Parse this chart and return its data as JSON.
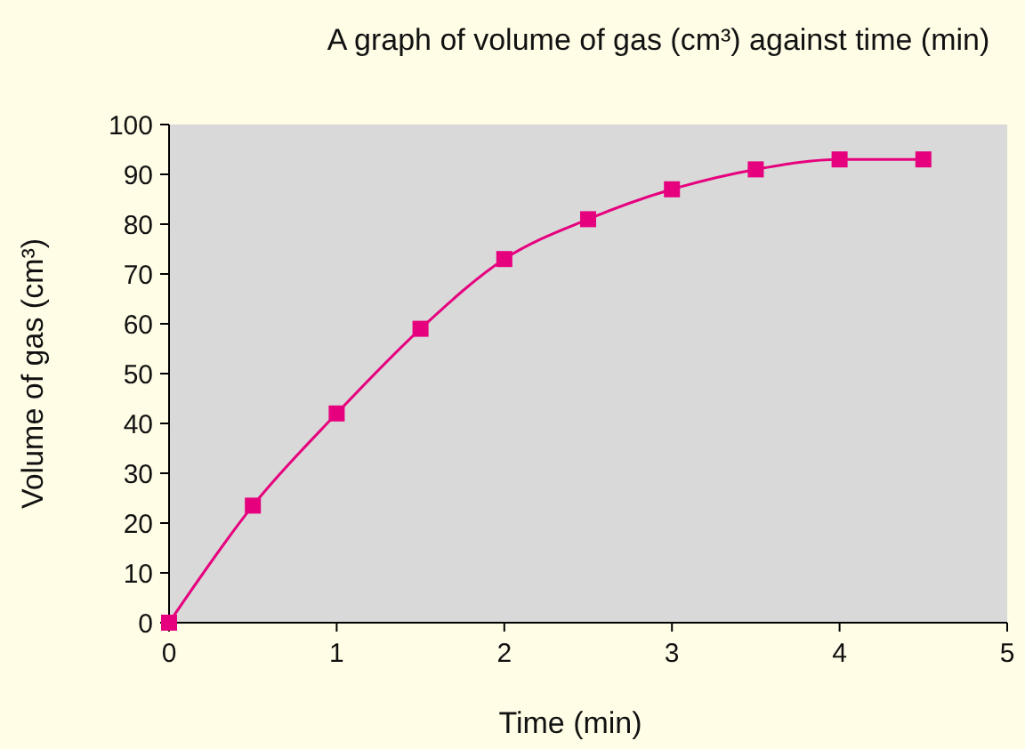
{
  "chart_data": {
    "type": "line",
    "title": "A graph of volume of gas (cm³) against time (min)",
    "xlabel": "Time (min)",
    "ylabel": "Volume of gas (cm³)",
    "x": [
      0,
      0.5,
      1,
      1.5,
      2,
      2.5,
      3,
      3.5,
      4,
      4.5
    ],
    "series": [
      {
        "color": "#e6007e",
        "values": [
          0,
          23.5,
          42,
          59,
          73,
          81,
          87,
          91,
          93,
          93
        ]
      }
    ],
    "xlim": [
      0,
      5
    ],
    "xticks": [
      0,
      1,
      2,
      3,
      4,
      5
    ],
    "ylim": [
      0,
      100
    ],
    "yticks": [
      0,
      10,
      20,
      30,
      40,
      50,
      60,
      70,
      80,
      90,
      100
    ],
    "grid": false,
    "marker": "square",
    "line_style": "solid"
  }
}
